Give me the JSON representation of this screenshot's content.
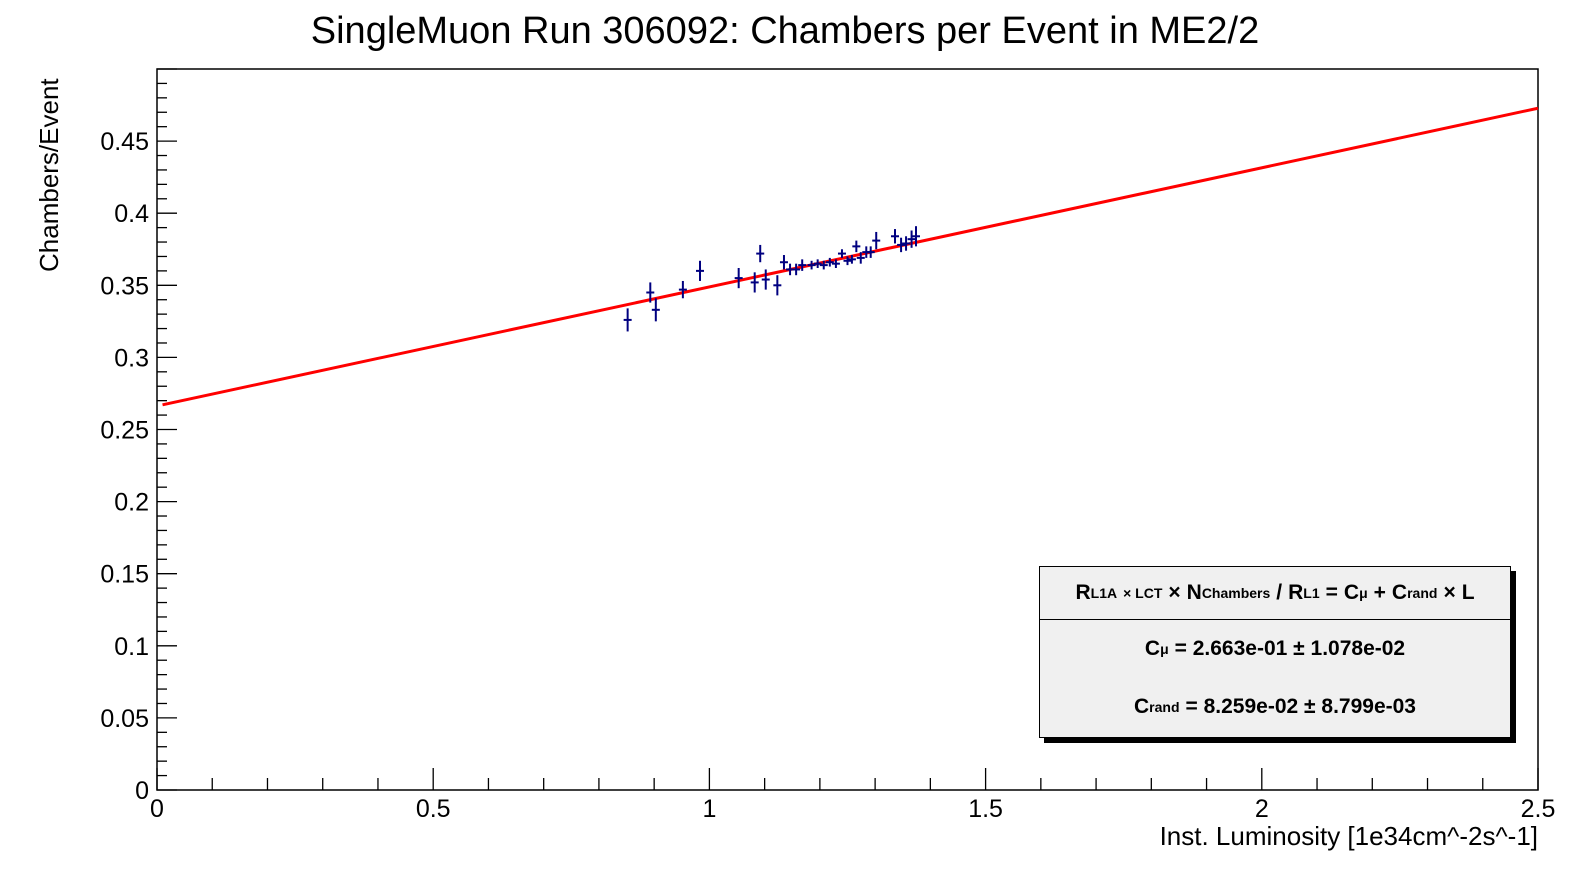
{
  "chart_data": {
    "type": "scatter",
    "title": "SingleMuon Run 306092: Chambers per Event in ME2/2",
    "xlabel": "Inst. Luminosity [1e34cm^-2s^-1]",
    "ylabel": "Chambers/Event",
    "xlim": [
      0,
      2.5
    ],
    "ylim": [
      0,
      0.5
    ],
    "x_ticks": [
      0,
      0.5,
      1,
      1.5,
      2,
      2.5
    ],
    "x_tick_labels": [
      "0",
      "0.5",
      "1",
      "1.5",
      "2",
      "2.5"
    ],
    "y_ticks": [
      0,
      0.05,
      0.1,
      0.15,
      0.2,
      0.25,
      0.3,
      0.35,
      0.4,
      0.45
    ],
    "y_tick_labels": [
      "0",
      "0.05",
      "0.1",
      "0.15",
      "0.2",
      "0.25",
      "0.3",
      "0.35",
      "0.4",
      "0.45"
    ],
    "grid": false,
    "series": [
      {
        "color": "#000080",
        "points": [
          {
            "x": 0.852,
            "y": 0.326,
            "err": 0.008
          },
          {
            "x": 0.893,
            "y": 0.345,
            "err": 0.007
          },
          {
            "x": 0.903,
            "y": 0.333,
            "err": 0.008
          },
          {
            "x": 0.952,
            "y": 0.347,
            "err": 0.006
          },
          {
            "x": 0.983,
            "y": 0.36,
            "err": 0.007
          },
          {
            "x": 1.053,
            "y": 0.355,
            "err": 0.007
          },
          {
            "x": 1.082,
            "y": 0.352,
            "err": 0.007
          },
          {
            "x": 1.092,
            "y": 0.372,
            "err": 0.006
          },
          {
            "x": 1.102,
            "y": 0.354,
            "err": 0.007
          },
          {
            "x": 1.123,
            "y": 0.35,
            "err": 0.007
          },
          {
            "x": 1.135,
            "y": 0.366,
            "err": 0.005
          },
          {
            "x": 1.146,
            "y": 0.361,
            "err": 0.004
          },
          {
            "x": 1.157,
            "y": 0.361,
            "err": 0.004
          },
          {
            "x": 1.168,
            "y": 0.364,
            "err": 0.004
          },
          {
            "x": 1.185,
            "y": 0.364,
            "err": 0.003
          },
          {
            "x": 1.196,
            "y": 0.365,
            "err": 0.003
          },
          {
            "x": 1.207,
            "y": 0.364,
            "err": 0.003
          },
          {
            "x": 1.218,
            "y": 0.366,
            "err": 0.003
          },
          {
            "x": 1.229,
            "y": 0.365,
            "err": 0.003
          },
          {
            "x": 1.24,
            "y": 0.372,
            "err": 0.003
          },
          {
            "x": 1.25,
            "y": 0.367,
            "err": 0.003
          },
          {
            "x": 1.258,
            "y": 0.368,
            "err": 0.003
          },
          {
            "x": 1.266,
            "y": 0.377,
            "err": 0.004
          },
          {
            "x": 1.274,
            "y": 0.369,
            "err": 0.004
          },
          {
            "x": 1.284,
            "y": 0.373,
            "err": 0.004
          },
          {
            "x": 1.292,
            "y": 0.373,
            "err": 0.004
          },
          {
            "x": 1.302,
            "y": 0.381,
            "err": 0.006
          },
          {
            "x": 1.336,
            "y": 0.384,
            "err": 0.005
          },
          {
            "x": 1.347,
            "y": 0.378,
            "err": 0.005
          },
          {
            "x": 1.356,
            "y": 0.379,
            "err": 0.005
          },
          {
            "x": 1.366,
            "y": 0.382,
            "err": 0.006
          },
          {
            "x": 1.374,
            "y": 0.384,
            "err": 0.007
          }
        ]
      },
      {
        "type": "line",
        "color": "#ff0000",
        "x": [
          0.01,
          2.5
        ],
        "y": [
          0.2671,
          0.4728
        ]
      }
    ],
    "legend": {
      "placement": "bottom-right",
      "formula": {
        "r": "R",
        "r_sub": "L1A",
        "times_sub": "× LCT",
        "times": "×",
        "n": "N",
        "n_sub": "Chambers",
        "slash": "/",
        "r2": "R",
        "r2_sub": "L1",
        "eq": "=",
        "c": "C",
        "c_sub": "μ",
        "plus": "+",
        "c2": "C",
        "c2_sub": "rand",
        "times2": "×",
        "l": "L"
      },
      "c_mu": {
        "sym": "C",
        "sub": "μ",
        "text": "= 2.663e-01 ± 1.078e-02"
      },
      "c_rand": {
        "sym": "C",
        "sub": "rand",
        "text": "= 8.259e-02 ± 8.799e-03"
      }
    }
  }
}
